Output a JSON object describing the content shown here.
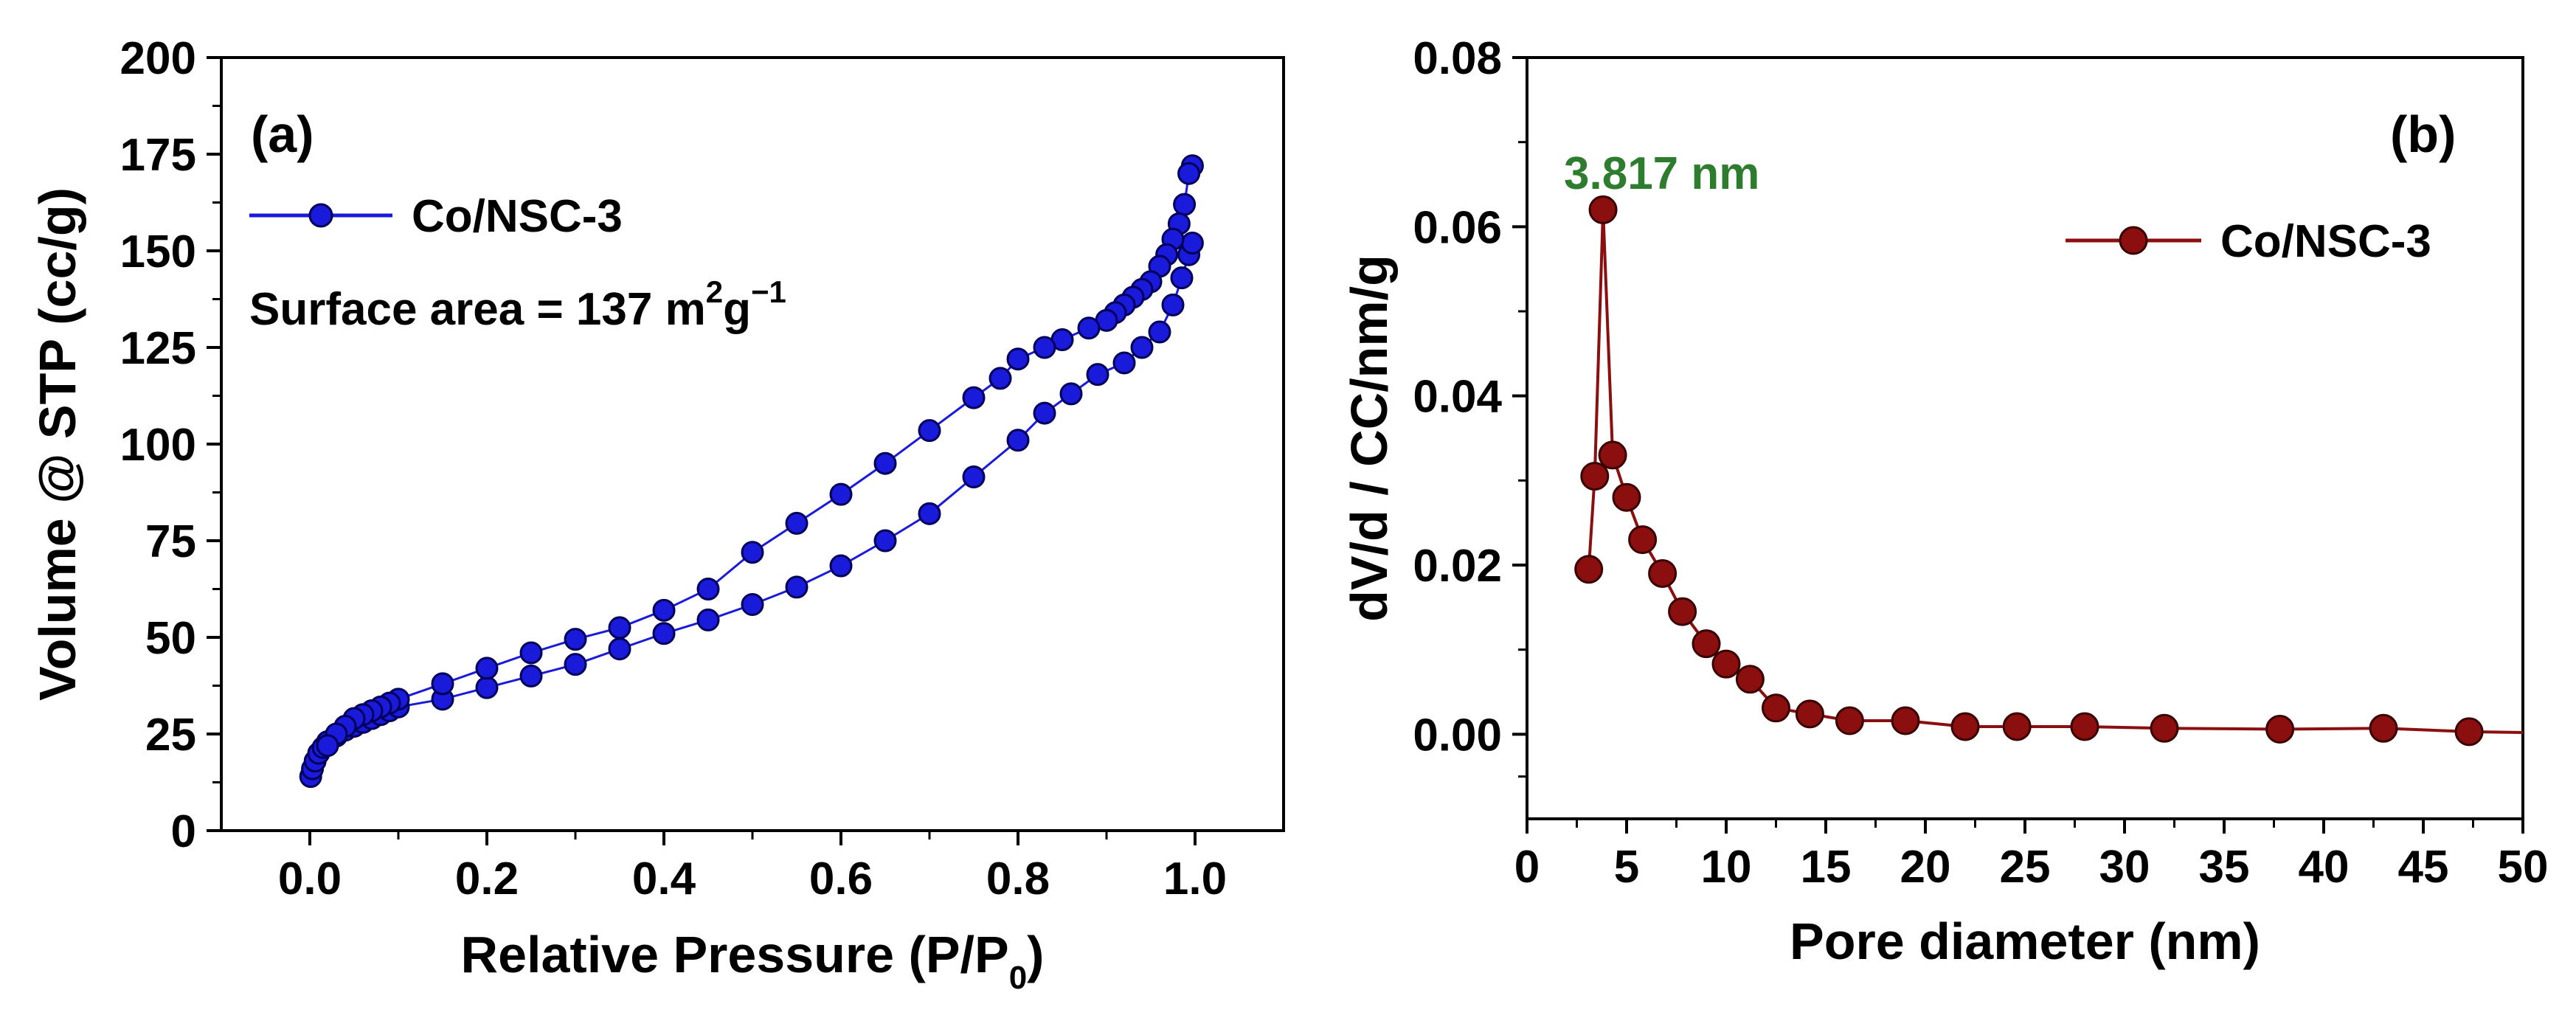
{
  "chart_data": [
    {
      "type": "line",
      "panel_label": "(a)",
      "xlabel": "Relative Pressure (P/P",
      "xlabel_sub": "0",
      "xlabel_close": ")",
      "ylabel": "Volume @ STP (cc/g)",
      "xlim": [
        -0.1,
        1.1
      ],
      "ylim": [
        0,
        200
      ],
      "x_ticks": [
        0.0,
        0.2,
        0.4,
        0.6,
        0.8,
        1.0
      ],
      "x_tick_labels": [
        "0.0",
        "0.2",
        "0.4",
        "0.6",
        "0.8",
        "1.0"
      ],
      "y_ticks": [
        0,
        25,
        50,
        75,
        100,
        125,
        150,
        175,
        200
      ],
      "y_tick_labels": [
        "0",
        "25",
        "50",
        "75",
        "100",
        "125",
        "150",
        "175",
        "200"
      ],
      "legend": "Co/NSC-3",
      "annotation": {
        "prefix": "Surface area = 137 m",
        "sup1": "2",
        "mid": "g",
        "sup2": "−1"
      },
      "color": "#1a1adb",
      "series": [
        {
          "name": "adsorption",
          "x": [
            0.001,
            0.003,
            0.006,
            0.01,
            0.015,
            0.02,
            0.03,
            0.04,
            0.05,
            0.06,
            0.07,
            0.08,
            0.09,
            0.1,
            0.15,
            0.2,
            0.25,
            0.3,
            0.35,
            0.4,
            0.45,
            0.5,
            0.55,
            0.6,
            0.65,
            0.7,
            0.75,
            0.8,
            0.83,
            0.86,
            0.89,
            0.92,
            0.94,
            0.96,
            0.975,
            0.985,
            0.993,
            0.997
          ],
          "y": [
            14,
            16,
            18,
            20,
            21.5,
            23,
            24.5,
            26,
            27,
            28,
            29,
            30,
            31,
            32,
            34,
            37,
            40,
            43,
            47,
            51,
            54.5,
            58.5,
            63,
            68.5,
            75,
            82,
            91.5,
            101,
            108,
            113,
            118,
            121,
            125,
            129,
            136,
            143,
            149,
            152
          ]
        },
        {
          "name": "desorption",
          "x": [
            0.997,
            0.993,
            0.988,
            0.982,
            0.975,
            0.968,
            0.96,
            0.95,
            0.94,
            0.93,
            0.92,
            0.91,
            0.9,
            0.88,
            0.85,
            0.83,
            0.8,
            0.78,
            0.75,
            0.7,
            0.65,
            0.6,
            0.55,
            0.5,
            0.45,
            0.4,
            0.35,
            0.3,
            0.25,
            0.2,
            0.15,
            0.1,
            0.09,
            0.08,
            0.07,
            0.06,
            0.05,
            0.04,
            0.03,
            0.02
          ],
          "y": [
            172,
            170,
            162,
            157,
            153,
            149,
            146,
            142,
            140,
            138,
            136,
            134,
            132,
            130,
            127,
            125,
            122,
            117,
            112,
            103.5,
            95,
            87,
            79.5,
            72,
            62.5,
            57,
            52.5,
            49.5,
            46,
            42,
            38,
            34,
            33,
            32,
            31,
            30,
            29,
            27,
            25,
            22
          ]
        }
      ]
    },
    {
      "type": "line",
      "panel_label": "(b)",
      "xlabel": "Pore diameter (nm)",
      "ylabel": "dV/d / CC/nm/g",
      "xlim": [
        0,
        50
      ],
      "ylim": [
        -0.01,
        0.08
      ],
      "x_ticks": [
        0,
        5,
        10,
        15,
        20,
        25,
        30,
        35,
        40,
        45,
        50
      ],
      "x_tick_labels": [
        "0",
        "5",
        "10",
        "15",
        "20",
        "25",
        "30",
        "35",
        "40",
        "45",
        "50"
      ],
      "y_ticks": [
        0.0,
        0.02,
        0.04,
        0.06,
        0.08
      ],
      "y_tick_labels": [
        "0.00",
        "0.02",
        "0.04",
        "0.06",
        "0.08"
      ],
      "legend": "Co/NSC-3",
      "annotation": {
        "text": "3.817 nm",
        "color": "#2e7d2e"
      },
      "color": "#8b0f0f",
      "series": [
        {
          "name": "Co/NSC-3",
          "x": [
            3.1,
            3.4,
            3.817,
            4.3,
            5.0,
            5.8,
            6.8,
            7.8,
            9.0,
            10.0,
            11.2,
            12.5,
            14.2,
            16.2,
            19.0,
            22.0,
            24.6,
            28.0,
            32.0,
            37.8,
            43.0,
            47.3,
            50.0
          ],
          "y": [
            0.0195,
            0.0305,
            0.062,
            0.033,
            0.028,
            0.023,
            0.019,
            0.0145,
            0.0107,
            0.0083,
            0.0065,
            0.0031,
            0.0024,
            0.0016,
            0.0016,
            0.0009,
            0.0009,
            0.0009,
            0.0007,
            0.0006,
            0.0007,
            0.0003,
            0.0002
          ],
          "marker_mask": [
            true,
            true,
            true,
            true,
            true,
            true,
            true,
            true,
            true,
            true,
            true,
            true,
            true,
            true,
            true,
            true,
            true,
            true,
            true,
            true,
            true,
            true,
            false
          ]
        }
      ]
    }
  ]
}
